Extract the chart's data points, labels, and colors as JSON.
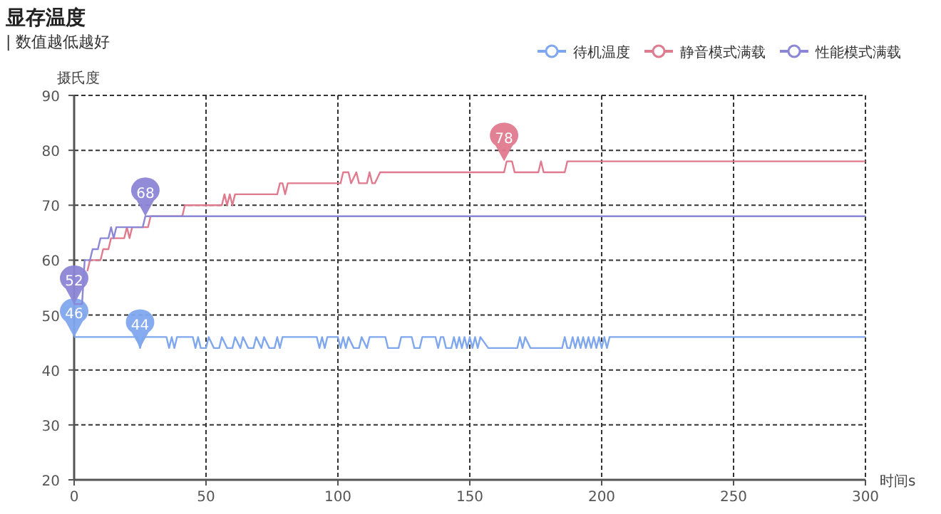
{
  "chart_data": {
    "type": "line",
    "title": "显存温度",
    "subtitle": "| 数值越低越好",
    "xlabel": "时间s",
    "ylabel": "摄氏度",
    "xlim": [
      0,
      300
    ],
    "ylim": [
      20,
      90
    ],
    "xticks": [
      0,
      50,
      100,
      150,
      200,
      250,
      300
    ],
    "yticks": [
      20,
      30,
      40,
      50,
      60,
      70,
      80,
      90
    ],
    "grid": true,
    "legend": "top right",
    "series": [
      {
        "name": "待机温度",
        "color": "#7fa7ee",
        "x": [
          0,
          24,
          25,
          26,
          35,
          36,
          37,
          38,
          39,
          45,
          46,
          47,
          48,
          50,
          51,
          53,
          55,
          56,
          58,
          60,
          61,
          63,
          64,
          66,
          68,
          69,
          71,
          72,
          74,
          76,
          77,
          78,
          79,
          92,
          93,
          94,
          95,
          96,
          100,
          101,
          102,
          103,
          104,
          106,
          108,
          109,
          111,
          112,
          118,
          119,
          123,
          124,
          128,
          129,
          131,
          132,
          137,
          138,
          139,
          140,
          141,
          143,
          144,
          145,
          146,
          147,
          148,
          149,
          150,
          151,
          152,
          153,
          154,
          157,
          168,
          169,
          170,
          171,
          173,
          185,
          186,
          187,
          188,
          189,
          190,
          191,
          192,
          193,
          194,
          195,
          196,
          197,
          198,
          199,
          200,
          201,
          202,
          203,
          300
        ],
        "values": [
          46,
          46,
          44,
          46,
          46,
          44,
          46,
          44,
          46,
          46,
          44,
          46,
          44,
          44,
          46,
          44,
          44,
          46,
          44,
          44,
          46,
          44,
          46,
          44,
          44,
          46,
          44,
          46,
          44,
          44,
          46,
          44,
          46,
          46,
          44,
          46,
          44,
          46,
          46,
          44,
          46,
          44,
          46,
          44,
          44,
          46,
          44,
          46,
          46,
          44,
          44,
          46,
          46,
          44,
          44,
          46,
          46,
          44,
          46,
          46,
          44,
          44,
          46,
          44,
          46,
          44,
          46,
          44,
          46,
          44,
          46,
          44,
          46,
          44,
          44,
          46,
          44,
          46,
          44,
          44,
          46,
          44,
          44,
          46,
          44,
          46,
          44,
          46,
          44,
          46,
          44,
          46,
          44,
          46,
          44,
          46,
          44,
          46,
          46
        ]
      },
      {
        "name": "静音模式满载",
        "color": "#e07a8e",
        "x": [
          5,
          6,
          10,
          11,
          13,
          14,
          19,
          20,
          21,
          22,
          23,
          28,
          29,
          41,
          42,
          56,
          57,
          58,
          59,
          60,
          61,
          77,
          78,
          79,
          80,
          81,
          101,
          102,
          104,
          105,
          107,
          108,
          111,
          112,
          113,
          114,
          116,
          117,
          163,
          164,
          166,
          167,
          176,
          177,
          178,
          186,
          187,
          300
        ],
        "values": [
          58,
          60,
          60,
          62,
          62,
          64,
          64,
          66,
          64,
          66,
          66,
          66,
          68,
          68,
          70,
          70,
          72,
          70,
          72,
          70,
          72,
          72,
          74,
          74,
          72,
          74,
          74,
          76,
          76,
          74,
          76,
          74,
          74,
          76,
          74,
          74,
          76,
          76,
          76,
          78,
          78,
          76,
          76,
          78,
          76,
          76,
          78,
          78
        ]
      },
      {
        "name": "性能模式满载",
        "color": "#8c86d6",
        "x": [
          0,
          3,
          4,
          6,
          7,
          9,
          10,
          13,
          14,
          15,
          16,
          17,
          26,
          27,
          300
        ],
        "values": [
          52,
          52,
          60,
          60,
          62,
          62,
          64,
          64,
          66,
          64,
          66,
          66,
          66,
          68,
          68
        ]
      }
    ],
    "annotations": [
      {
        "text": "46",
        "x": 0,
        "y": 46
      },
      {
        "text": "44",
        "x": 25,
        "y": 44
      },
      {
        "text": "52",
        "x": 0,
        "y": 52
      },
      {
        "text": "68",
        "x": 27,
        "y": 68
      },
      {
        "text": "78",
        "x": 163,
        "y": 78
      }
    ]
  }
}
